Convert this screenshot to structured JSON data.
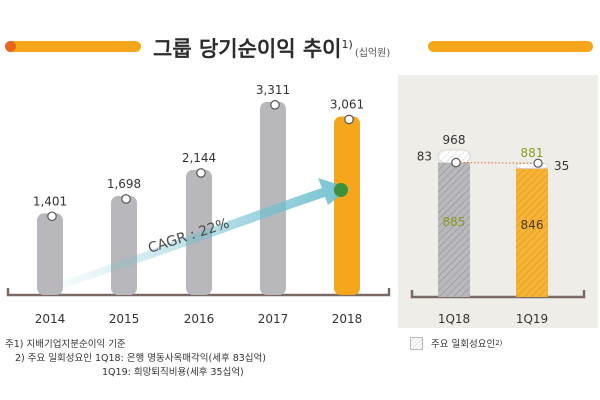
{
  "title": {
    "main": "그룹 당기순이익 추이",
    "sup": "1)",
    "unit": "(십억원)"
  },
  "colors": {
    "accent": "#F5A61A",
    "accent_dark": "#E8651C",
    "gray_bar": "#B8B8BC",
    "hatch_gray": "#9C9CA0",
    "hatch_orange": "#F5A61A",
    "arrow": "#6FC0CF",
    "green_text": "#8C9A1E",
    "panel_bg": "#EFEDE8",
    "axis": "#7A6A66"
  },
  "chart_data": [
    {
      "type": "bar",
      "title": "그룹 당기순이익 추이",
      "unit": "십억원",
      "categories": [
        "2014",
        "2015",
        "2016",
        "2017",
        "2018"
      ],
      "values": [
        1401,
        1698,
        2144,
        3311,
        3061
      ],
      "labels": [
        "1,401",
        "1,698",
        "2,144",
        "3,311",
        "3,061"
      ],
      "highlight": "2018",
      "ylim": [
        0,
        3600
      ],
      "annotation": "CAGR : 22%"
    },
    {
      "type": "bar",
      "categories": [
        "1Q18",
        "1Q19"
      ],
      "recurring": [
        885,
        846
      ],
      "one_off": [
        83,
        35
      ],
      "totals": [
        968,
        881
      ],
      "labels": {
        "totals": [
          "968",
          "881"
        ],
        "recurring": [
          "885",
          "846"
        ],
        "one_off": [
          "83",
          "35"
        ]
      },
      "ylim": [
        0,
        1100
      ]
    }
  ],
  "legend": {
    "label": "주요 일회성요인",
    "sup": "2)"
  },
  "footnotes": {
    "line1": "주1) 지배기업지분순이익 기준",
    "line2": "2) 주요 일회성요인 1Q18: 은행 명동사옥매각익(세후 83십억)",
    "line3": "1Q19: 희망퇴직비용(세후 35십억)"
  }
}
